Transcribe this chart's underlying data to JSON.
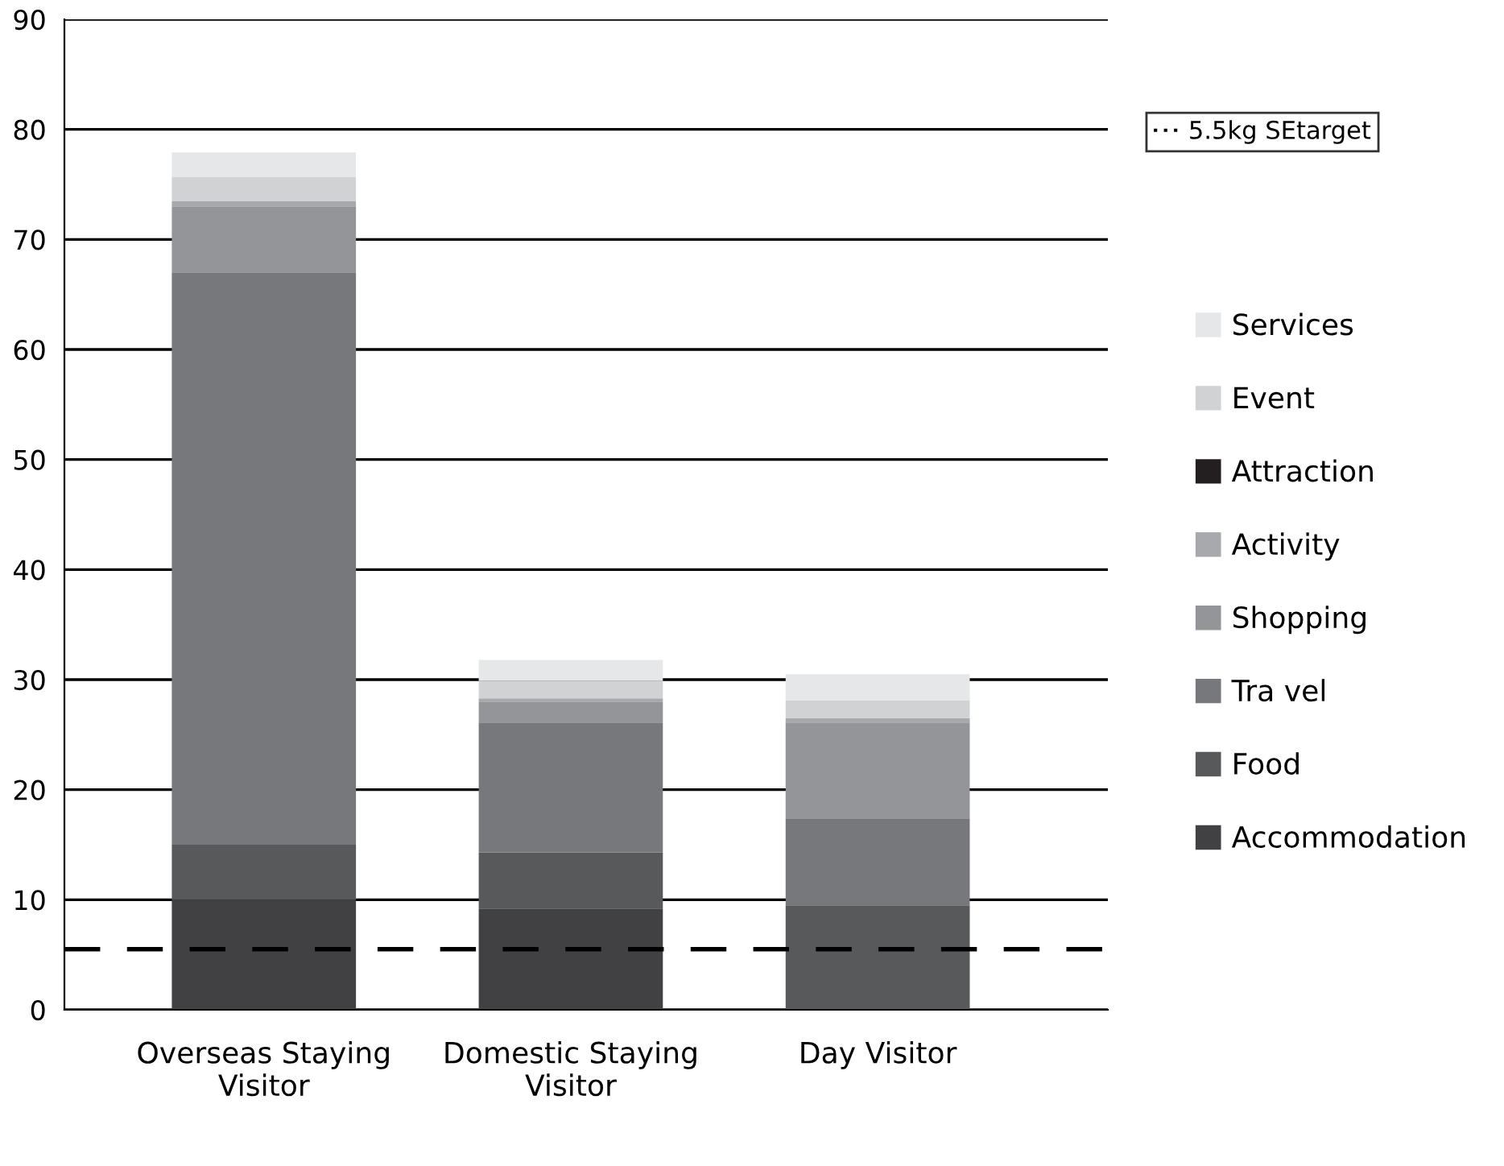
{
  "chart_data": {
    "type": "bar",
    "stacked": true,
    "categories": [
      "Overseas Staying\nVisitor",
      "Domestic Staying\nVisitor",
      "Day Visitor"
    ],
    "series": [
      {
        "name": "Accommodation",
        "color": "#414042",
        "values": [
          10,
          9.2,
          0
        ]
      },
      {
        "name": "Food",
        "color": "#58595b",
        "values": [
          5,
          5.1,
          9.5
        ]
      },
      {
        "name": "Tra vel",
        "color": "#77787b",
        "values": [
          52,
          11.8,
          7.9
        ]
      },
      {
        "name": "Shopping",
        "color": "#939598",
        "values": [
          6,
          1.9,
          8.7
        ]
      },
      {
        "name": "Activity",
        "color": "#a7a9ac",
        "values": [
          0.5,
          0.3,
          0.4
        ]
      },
      {
        "name": "Attraction",
        "color": "#231f20",
        "values": [
          0,
          0,
          0
        ]
      },
      {
        "name": "Event",
        "color": "#d1d2d4",
        "values": [
          2.2,
          1.6,
          1.6
        ]
      },
      {
        "name": "Services",
        "color": "#e6e7e8",
        "values": [
          2.2,
          1.9,
          2.4
        ]
      }
    ],
    "ylim": [
      0,
      90
    ],
    "yticks": [
      0,
      10,
      20,
      30,
      40,
      50,
      60,
      70,
      80,
      90
    ],
    "grid": "y",
    "legend": "right",
    "ref_lines": [
      {
        "axis": "y",
        "value": 5.5,
        "label": "5.5kg SEtarget",
        "color": "#000000",
        "line_style": "dashed"
      }
    ]
  }
}
